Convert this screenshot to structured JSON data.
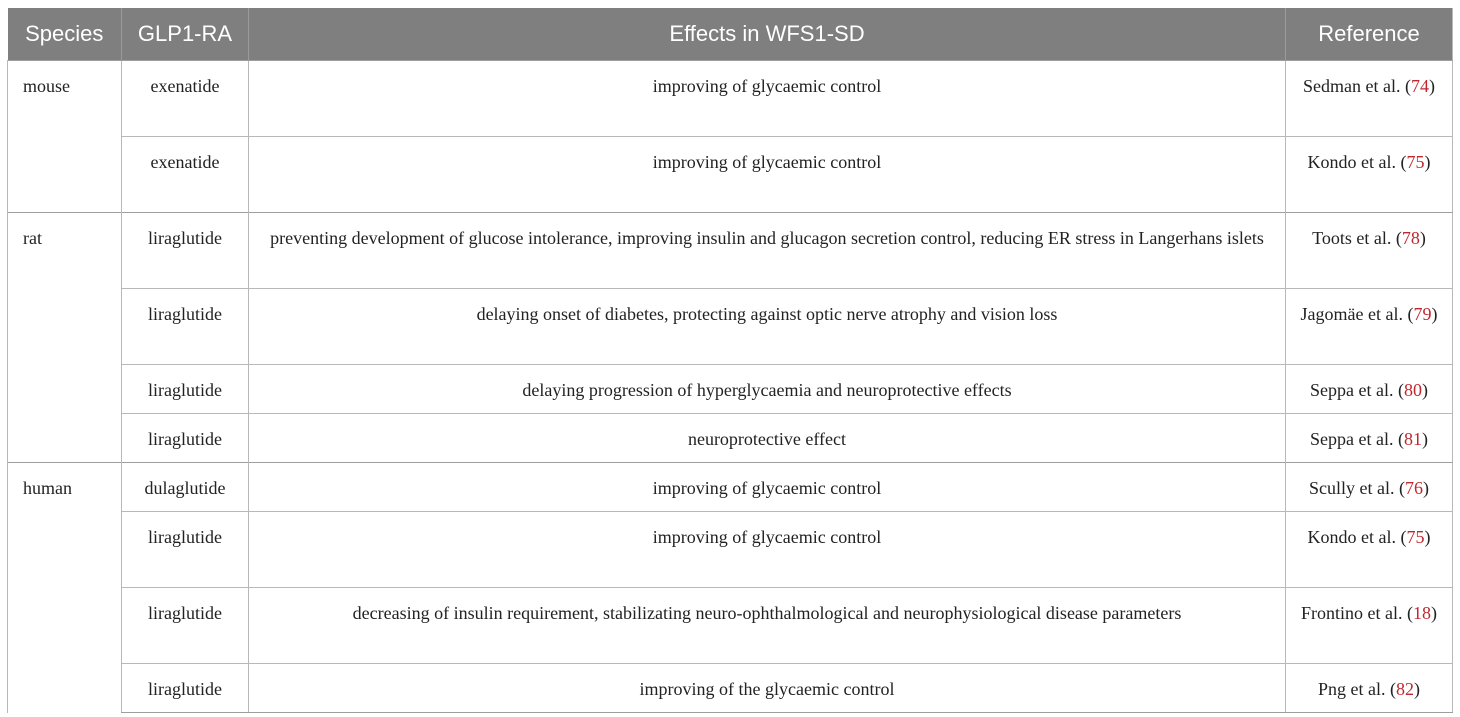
{
  "headers": {
    "species": "Species",
    "glp1ra": "GLP1-RA",
    "effects": "Effects in WFS1-SD",
    "reference": "Reference"
  },
  "rows": [
    {
      "species": "mouse",
      "drug": "exenatide",
      "effect": "improving of glycaemic control",
      "ref_text": "Sedman et al.",
      "ref_num": "74"
    },
    {
      "species": "",
      "drug": "exenatide",
      "effect": "improving of glycaemic control",
      "ref_text": "Kondo et al.",
      "ref_num": "75"
    },
    {
      "species": "rat",
      "drug": "liraglutide",
      "effect": "preventing development of glucose intolerance, improving insulin and glucagon secretion control, reducing ER stress in Langerhans islets",
      "ref_text": "Toots et al.",
      "ref_num": "78"
    },
    {
      "species": "",
      "drug": "liraglutide",
      "effect": "delaying onset of diabetes, protecting against optic nerve atrophy and vision loss",
      "ref_text": "Jagomäe et al.",
      "ref_num": "79"
    },
    {
      "species": "",
      "drug": "liraglutide",
      "effect": "delaying progression of hyperglycaemia and neuroprotective effects",
      "ref_text": "Seppa et al.",
      "ref_num": "80"
    },
    {
      "species": "",
      "drug": "liraglutide",
      "effect": "neuroprotective effect",
      "ref_text": "Seppa et al.",
      "ref_num": "81"
    },
    {
      "species": "human",
      "drug": "dulaglutide",
      "effect": "improving of glycaemic control",
      "ref_text": "Scully et al.",
      "ref_num": "76"
    },
    {
      "species": "",
      "drug": "liraglutide",
      "effect": "improving of glycaemic control",
      "ref_text": "Kondo et al.",
      "ref_num": "75"
    },
    {
      "species": "",
      "drug": "liraglutide",
      "effect": "decreasing of insulin requirement, stabilizating neuro-ophthalmological and neurophysiological disease parameters",
      "ref_text": "Frontino et al.",
      "ref_num": "18"
    },
    {
      "species": "",
      "drug": "liraglutide",
      "effect": "improving of the glycaemic control",
      "ref_text": "Png et al.",
      "ref_num": "82"
    }
  ]
}
